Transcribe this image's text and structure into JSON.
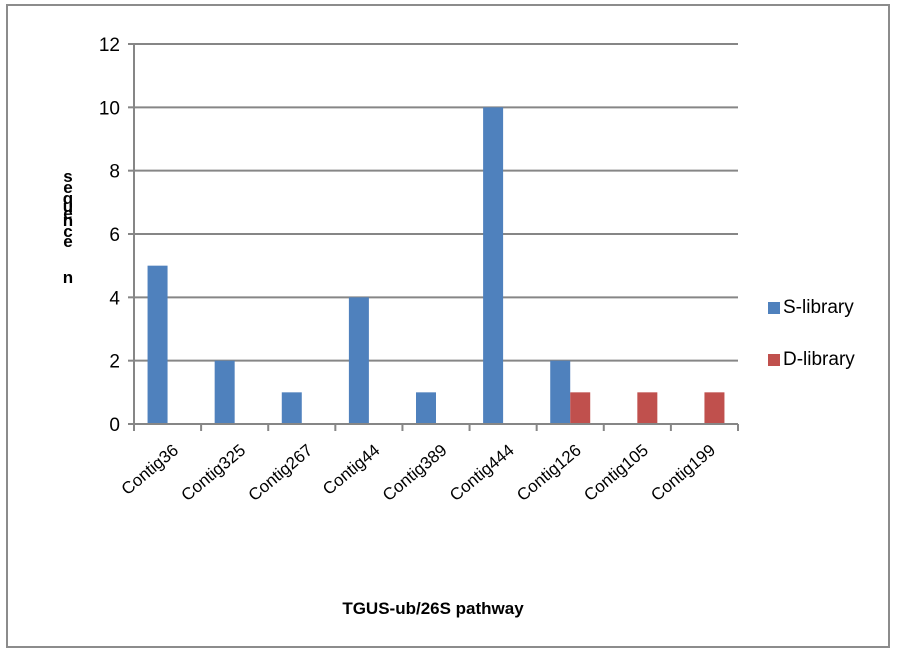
{
  "chart_data": {
    "type": "bar",
    "categories": [
      "Contig36",
      "Contig325",
      "Contig267",
      "Contig44",
      "Contig389",
      "Contig444",
      "Contig126",
      "Contig105",
      "Contig199"
    ],
    "series": [
      {
        "name": "S-library",
        "color": "#4f81bd",
        "values": [
          5,
          2,
          1,
          4,
          1,
          10,
          2,
          0,
          0
        ]
      },
      {
        "name": "D-library",
        "color": "#c0504d",
        "values": [
          0,
          0,
          0,
          0,
          0,
          0,
          1,
          1,
          1
        ]
      }
    ],
    "xlabel": "TGUS-ub/26S pathway",
    "ylabel": "sequence n",
    "ylabel_visible_letters": [
      "s",
      "e",
      "q",
      "u",
      "e",
      "n",
      "c",
      "e",
      "n"
    ],
    "ylim": [
      0,
      12
    ],
    "yticks": [
      0,
      2,
      4,
      6,
      8,
      10,
      12
    ],
    "grid": true,
    "legend_position": "right"
  }
}
